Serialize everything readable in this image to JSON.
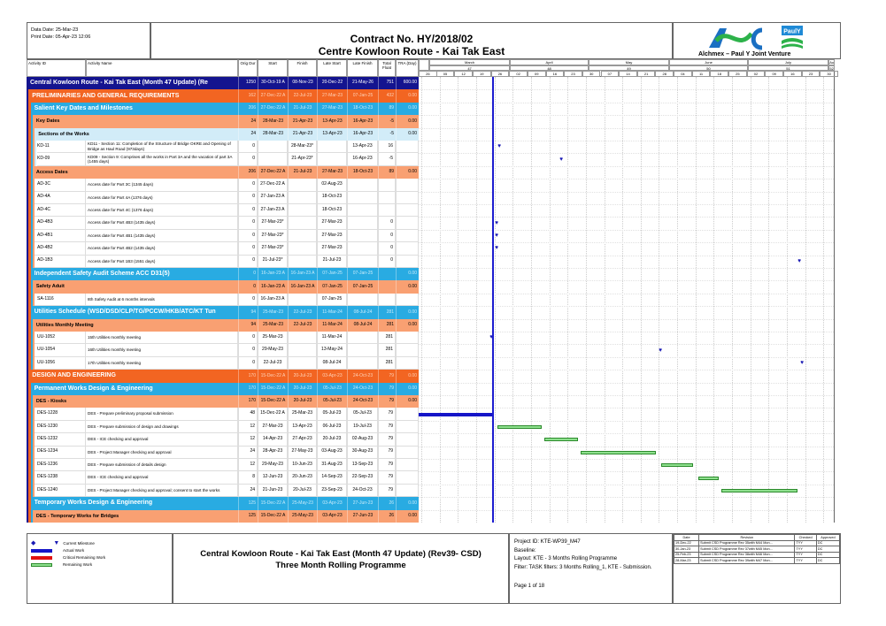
{
  "header": {
    "data_date": "Data Date: 25-Mar-23",
    "print_date": "Print Date: 05-Apr-23 12:06",
    "contract": "Contract No. HY/2018/02",
    "project": "Centre Kowloon Route - Kai Tak East",
    "logo_text": "AJC",
    "logo_badge": "PaulY",
    "jv_name": "Alchmex – Paul Y Joint Venture"
  },
  "columns": [
    "Activity ID",
    "Activity Name",
    "Orig Dur",
    "Start",
    "Finish",
    "Late Start",
    "Late Finish",
    "Total Float",
    "TRA (Day)"
  ],
  "colors": {
    "levels": [
      "#14148f",
      "#f26522",
      "#29abe2",
      "#f9a072",
      "#d2ecf8",
      "#f9a072"
    ],
    "level_text": [
      "#ffffff",
      "#ffffff",
      "#ffffff",
      "#000000",
      "#000000",
      "#000000"
    ],
    "level_num_text": [
      "#ffffff",
      "#ffd2b8",
      "#c8ebfa",
      "#000000",
      "#000000",
      "#000000"
    ],
    "actual_bar": "#1515c8",
    "remaining_bar": "#8ee08e",
    "remaining_border": "#2c8a2c",
    "milestone": "#1a1ab4",
    "data_date_line": "#1d1dd0"
  },
  "timeline": {
    "months": [
      {
        "name": "March",
        "num": "47"
      },
      {
        "name": "April",
        "num": "48"
      },
      {
        "name": "May",
        "num": "49"
      },
      {
        "name": "June",
        "num": "50"
      },
      {
        "name": "July",
        "num": "51"
      },
      {
        "name": "Aug",
        "num": "52"
      }
    ],
    "weeks": [
      "26",
      "05",
      "12",
      "19",
      "26",
      "02",
      "09",
      "16",
      "23",
      "30",
      "07",
      "14",
      "21",
      "28",
      "04",
      "11",
      "18",
      "25",
      "02",
      "09",
      "16",
      "23",
      "30"
    ],
    "data_date": "25-Mar-23"
  },
  "rows": [
    {
      "kind": "summary",
      "level": 0,
      "name": "Central Kowloon Route - Kai Tak East (Month 47 Update) (Re",
      "dur": "1250",
      "start": "30-Oct-19 A",
      "finish": "08-Nov-23",
      "ls": "20-Dec-22",
      "lf": "21-May-26",
      "tf": "751",
      "tra": "600.00"
    },
    {
      "kind": "summary",
      "level": 1,
      "name": "PRELIMINARIES AND GENERAL REQUIREMENTS",
      "dur": "162",
      "start": "27-Dec-22 A",
      "finish": "22-Jul-23",
      "ls": "27-Mar-23",
      "lf": "07-Jan-25",
      "tf": "432",
      "tra": "0.00"
    },
    {
      "kind": "summary",
      "level": 2,
      "name": "Salient Key Dates and Milestones",
      "dur": "206",
      "start": "27-Dec-22 A",
      "finish": "21-Jul-23",
      "ls": "27-Mar-23",
      "lf": "18-Oct-23",
      "tf": "89",
      "tra": "0.00"
    },
    {
      "kind": "summary",
      "level": 3,
      "name": "Key Dates",
      "dur": "24",
      "start": "28-Mar-23",
      "finish": "21-Apr-23",
      "ls": "13-Apr-23",
      "lf": "16-Apr-23",
      "tf": "-5",
      "tra": "0.00"
    },
    {
      "kind": "summary",
      "level": 4,
      "name": "Sections of the Works",
      "dur": "24",
      "start": "28-Mar-23",
      "finish": "21-Apr-23",
      "ls": "13-Apr-23",
      "lf": "16-Apr-23",
      "tf": "-5",
      "tra": "0.00"
    },
    {
      "kind": "activity",
      "level": 5,
      "id": "KD-11",
      "name": "KD11 - Section 11: Completion of the Structure of Bridge OKRE and Opening of Bridge as Haul Road (973days)",
      "dur": "0",
      "start": "",
      "finish": "28-Mar-23*",
      "ls": "",
      "lf": "13-Apr-23",
      "tf": "16",
      "tra": "",
      "bar": {
        "type": "milestone",
        "date": "28-Mar-23"
      }
    },
    {
      "kind": "activity",
      "level": 5,
      "id": "KD-09",
      "name": "KD09 - Section 9: Comprises all the works in Part 3A and the vacation of part 3A (1455 days)",
      "dur": "0",
      "start": "",
      "finish": "21-Apr-23*",
      "ls": "",
      "lf": "16-Apr-23",
      "tf": "-5",
      "tra": "",
      "bar": {
        "type": "milestone",
        "date": "21-Apr-23"
      }
    },
    {
      "kind": "summary",
      "level": 3,
      "name": "Access Dates",
      "dur": "206",
      "start": "27-Dec-22 A",
      "finish": "21-Jul-23",
      "ls": "27-Mar-23",
      "lf": "18-Oct-23",
      "tf": "89",
      "tra": "0.00"
    },
    {
      "kind": "activity",
      "level": 4,
      "id": "AD-3C",
      "name": "Access date for Part 3C (1345 days)",
      "dur": "0",
      "start": "27-Dec-22 A",
      "finish": "",
      "ls": "02-Aug-23",
      "lf": "",
      "tf": "",
      "tra": ""
    },
    {
      "kind": "activity",
      "level": 4,
      "id": "AD-4A",
      "name": "Access date for Part 4A (1376 days)",
      "dur": "0",
      "start": "27-Jan-23 A",
      "finish": "",
      "ls": "18-Oct-23",
      "lf": "",
      "tf": "",
      "tra": ""
    },
    {
      "kind": "activity",
      "level": 4,
      "id": "AD-4C",
      "name": "Access date for Part 4C (1376 days)",
      "dur": "0",
      "start": "27-Jan-23 A",
      "finish": "",
      "ls": "18-Oct-23",
      "lf": "",
      "tf": "",
      "tra": ""
    },
    {
      "kind": "activity",
      "level": 4,
      "id": "AD-4B3",
      "name": "Access date for Part 4B3 (1435 days)",
      "dur": "0",
      "start": "27-Mar-23*",
      "finish": "",
      "ls": "27-Mar-23",
      "lf": "",
      "tf": "0",
      "tra": "",
      "bar": {
        "type": "milestone",
        "date": "27-Mar-23"
      }
    },
    {
      "kind": "activity",
      "level": 4,
      "id": "AD-4B1",
      "name": "Access date for Part 4B1 (1435 days)",
      "dur": "0",
      "start": "27-Mar-23*",
      "finish": "",
      "ls": "27-Mar-23",
      "lf": "",
      "tf": "0",
      "tra": "",
      "bar": {
        "type": "milestone",
        "date": "27-Mar-23"
      }
    },
    {
      "kind": "activity",
      "level": 4,
      "id": "AD-4B2",
      "name": "Access date for Part 4B2 (1435 days)",
      "dur": "0",
      "start": "27-Mar-23*",
      "finish": "",
      "ls": "27-Mar-23",
      "lf": "",
      "tf": "0",
      "tra": "",
      "bar": {
        "type": "milestone",
        "date": "27-Mar-23"
      }
    },
    {
      "kind": "activity",
      "level": 4,
      "id": "AD-1B3",
      "name": "Access date for Part 1B3 (1551 days)",
      "dur": "0",
      "start": "21-Jul-23*",
      "finish": "",
      "ls": "21-Jul-23",
      "lf": "",
      "tf": "0",
      "tra": "",
      "bar": {
        "type": "milestone",
        "date": "21-Jul-23"
      }
    },
    {
      "kind": "summary",
      "level": 2,
      "name": "Independent Safety Audit Scheme ACC D31(5)",
      "dur": "0",
      "start": "16-Jan-23 A",
      "finish": "16-Jan-23 A",
      "ls": "07-Jan-25",
      "lf": "07-Jan-25",
      "tf": "",
      "tra": "0.00"
    },
    {
      "kind": "summary",
      "level": 3,
      "name": "Safety Aduit",
      "dur": "0",
      "start": "16-Jan-23 A",
      "finish": "16-Jan-23 A",
      "ls": "07-Jan-25",
      "lf": "07-Jan-25",
      "tf": "",
      "tra": "0.00"
    },
    {
      "kind": "activity",
      "level": 4,
      "id": "SA-1116",
      "name": "8th Safety Audit at 6 months intervals",
      "dur": "0",
      "start": "16-Jan-23 A",
      "finish": "",
      "ls": "07-Jan-25",
      "lf": "",
      "tf": "",
      "tra": ""
    },
    {
      "kind": "summary",
      "level": 2,
      "name": "Utilities Schedule (WSD/DSD/CLP/TG/PCCW/HKB/ATC/KT Tun",
      "dur": "94",
      "start": "25-Mar-23",
      "finish": "22-Jul-23",
      "ls": "11-Mar-24",
      "lf": "08-Jul-24",
      "tf": "281",
      "tra": "0.00"
    },
    {
      "kind": "summary",
      "level": 3,
      "name": "Utilities Monthly Meeting",
      "dur": "94",
      "start": "25-Mar-23",
      "finish": "22-Jul-23",
      "ls": "11-Mar-24",
      "lf": "08-Jul-24",
      "tf": "281",
      "tra": "0.00"
    },
    {
      "kind": "activity",
      "level": 4,
      "id": "UU-1052",
      "name": "15th  Utilities monthly meeting",
      "dur": "0",
      "start": "25-Mar-23",
      "finish": "",
      "ls": "11-Mar-24",
      "lf": "",
      "tf": "281",
      "tra": "",
      "bar": {
        "type": "milestone",
        "date": "25-Mar-23"
      }
    },
    {
      "kind": "activity",
      "level": 4,
      "id": "UU-1054",
      "name": "16th Utilities monthly meeting",
      "dur": "0",
      "start": "29-May-23",
      "finish": "",
      "ls": "13-May-24",
      "lf": "",
      "tf": "281",
      "tra": "",
      "bar": {
        "type": "milestone",
        "date": "29-May-23"
      }
    },
    {
      "kind": "activity",
      "level": 4,
      "id": "UU-1056",
      "name": "17th  Utilities monthly meeting",
      "dur": "0",
      "start": "22-Jul-23",
      "finish": "",
      "ls": "08-Jul-24",
      "lf": "",
      "tf": "281",
      "tra": "",
      "bar": {
        "type": "milestone",
        "date": "22-Jul-23"
      }
    },
    {
      "kind": "summary",
      "level": 1,
      "name": "DESIGN AND ENGINEERING",
      "dur": "170",
      "start": "15-Dec-22 A",
      "finish": "20-Jul-23",
      "ls": "03-Apr-23",
      "lf": "24-Oct-23",
      "tf": "79",
      "tra": "0.00"
    },
    {
      "kind": "summary",
      "level": 2,
      "name": "Permanent Works Design & Engineering",
      "dur": "170",
      "start": "15-Dec-22 A",
      "finish": "20-Jul-23",
      "ls": "05-Jul-23",
      "lf": "24-Oct-23",
      "tf": "79",
      "tra": "0.00"
    },
    {
      "kind": "summary",
      "level": 3,
      "name": "DES - Kiosks",
      "dur": "170",
      "start": "15-Dec-22 A",
      "finish": "20-Jul-23",
      "ls": "05-Jul-23",
      "lf": "24-Oct-23",
      "tf": "79",
      "tra": "0.00"
    },
    {
      "kind": "activity",
      "level": 4,
      "id": "DES-1228",
      "name": "DES -  Prepare preliminary proposal submission",
      "dur": "48",
      "start": "15-Dec-22 A",
      "finish": "25-Mar-23",
      "ls": "05-Jul-23",
      "lf": "05-Jul-23",
      "tf": "79",
      "tra": "",
      "bar": {
        "type": "actual",
        "from": "15-Dec-22",
        "to": "25-Mar-23"
      }
    },
    {
      "kind": "activity",
      "level": 4,
      "id": "DES-1230",
      "name": "DES - Prepare submission of design and drawings",
      "dur": "12",
      "start": "27-Mar-23",
      "finish": "13-Apr-23",
      "ls": "06-Jul-23",
      "lf": "19-Jul-23",
      "tf": "79",
      "tra": "",
      "bar": {
        "type": "remaining",
        "from": "27-Mar-23",
        "to": "13-Apr-23"
      }
    },
    {
      "kind": "activity",
      "level": 4,
      "id": "DES-1232",
      "name": "DES - ICE checking and approval",
      "dur": "12",
      "start": "14-Apr-23",
      "finish": "27-Apr-23",
      "ls": "20-Jul-23",
      "lf": "02-Aug-23",
      "tf": "79",
      "tra": "",
      "bar": {
        "type": "remaining",
        "from": "14-Apr-23",
        "to": "27-Apr-23"
      }
    },
    {
      "kind": "activity",
      "level": 4,
      "id": "DES-1234",
      "name": "DES - Project Manager checking and approval",
      "dur": "24",
      "start": "28-Apr-23",
      "finish": "27-May-23",
      "ls": "03-Aug-23",
      "lf": "30-Aug-23",
      "tf": "79",
      "tra": "",
      "bar": {
        "type": "remaining",
        "from": "28-Apr-23",
        "to": "27-May-23"
      }
    },
    {
      "kind": "activity",
      "level": 4,
      "id": "DES-1236",
      "name": "DES - Prepare submission of details design",
      "dur": "12",
      "start": "29-May-23",
      "finish": "10-Jun-23",
      "ls": "31-Aug-23",
      "lf": "13-Sep-23",
      "tf": "79",
      "tra": "",
      "bar": {
        "type": "remaining",
        "from": "29-May-23",
        "to": "10-Jun-23"
      }
    },
    {
      "kind": "activity",
      "level": 4,
      "id": "DES-1238",
      "name": "DES - ICE checking and approval",
      "dur": "8",
      "start": "12-Jun-23",
      "finish": "20-Jun-23",
      "ls": "14-Sep-23",
      "lf": "22-Sep-23",
      "tf": "79",
      "tra": "",
      "bar": {
        "type": "remaining",
        "from": "12-Jun-23",
        "to": "20-Jun-23"
      }
    },
    {
      "kind": "activity",
      "level": 4,
      "id": "DES-1240",
      "name": "DES - Project Manager checking and approval; consent to start the works",
      "dur": "24",
      "start": "21-Jun-23",
      "finish": "20-Jul-23",
      "ls": "23-Sep-23",
      "lf": "24-Oct-23",
      "tf": "79",
      "tra": "",
      "bar": {
        "type": "remaining",
        "from": "21-Jun-23",
        "to": "20-Jul-23"
      }
    },
    {
      "kind": "summary",
      "level": 2,
      "name": "Temporary Works Design & Engineering",
      "dur": "125",
      "start": "15-Dec-22 A",
      "finish": "25-May-23",
      "ls": "03-Apr-23",
      "lf": "27-Jun-23",
      "tf": "26",
      "tra": "0.00"
    },
    {
      "kind": "summary",
      "level": 3,
      "name": "DES - Temporary Works for Bridges",
      "dur": "125",
      "start": "15-Dec-22 A",
      "finish": "25-May-23",
      "ls": "03-Apr-23",
      "lf": "27-Jun-23",
      "tf": "26",
      "tra": "0.00"
    }
  ],
  "footer": {
    "legend": [
      "Current Milestone",
      "Actual Work",
      "Critical Remaining Work",
      "Remaining Work"
    ],
    "title": "Central Kowloon Route - Kai Tak East (Month 47 Update) (Rev39- CSD)",
    "subtitle": "Three Month Rolling Programme",
    "project_id": "Project ID: KTE-WP39_M47",
    "baseline": "Baseline:",
    "layout": "Layout: KTE - 3 Months Rolling Programme",
    "filter": "Filter: TASK filters: 3 Months Rolling_1, KTE - Submission.",
    "page": "Page 1 of 18",
    "revision_headers": [
      "Date",
      "Revision",
      "Checked",
      "Approved"
    ],
    "revisions": [
      [
        "19-Dec-22",
        "Submit CSD Programme Rev 35with M44 Mon...",
        "TYY",
        "DC"
      ],
      [
        "30-Jan-23",
        "Submit CSD Programme Rev 37with M45 Mon...",
        "TYY",
        "DC"
      ],
      [
        "25-Feb-23",
        "Submit CSD Programme Rev 38with M46 Mon...",
        "TYY",
        "DC"
      ],
      [
        "28-Mar-23",
        "Submit CSD Programme Rev 39with M47 Mon...",
        "TYY",
        "DC"
      ]
    ]
  }
}
